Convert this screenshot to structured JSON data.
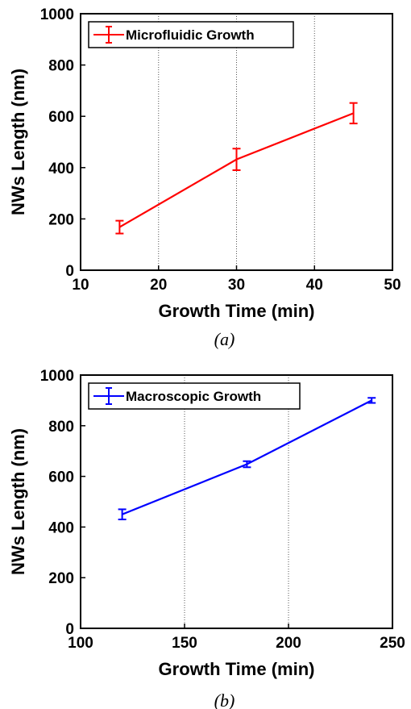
{
  "chart_data": [
    {
      "type": "line",
      "caption": "(a)",
      "xlabel": "Growth Time (min)",
      "ylabel": "NWs Length (nm)",
      "xlim": [
        10,
        50
      ],
      "ylim": [
        0,
        1000
      ],
      "xticks": [
        10,
        20,
        30,
        40,
        50
      ],
      "yticks": [
        0,
        200,
        400,
        600,
        800,
        1000
      ],
      "grid": "x-dotted",
      "legend_position": "top-left",
      "series": [
        {
          "name": "Microfluidic Growth",
          "color": "#ff0000",
          "x": [
            15,
            30,
            45
          ],
          "y": [
            168,
            432,
            612
          ],
          "error": [
            25,
            42,
            40
          ]
        }
      ]
    },
    {
      "type": "line",
      "caption": "(b)",
      "xlabel": "Growth Time (min)",
      "ylabel": "NWs Length (nm)",
      "xlim": [
        100,
        250
      ],
      "ylim": [
        0,
        1000
      ],
      "xticks": [
        100,
        150,
        200,
        250
      ],
      "yticks": [
        0,
        200,
        400,
        600,
        800,
        1000
      ],
      "grid": "x-dotted",
      "legend_position": "top-left",
      "series": [
        {
          "name": "Macroscopic Growth",
          "color": "#0000ff",
          "x": [
            120,
            180,
            240
          ],
          "y": [
            450,
            648,
            900
          ],
          "error": [
            20,
            12,
            10
          ]
        }
      ]
    }
  ]
}
